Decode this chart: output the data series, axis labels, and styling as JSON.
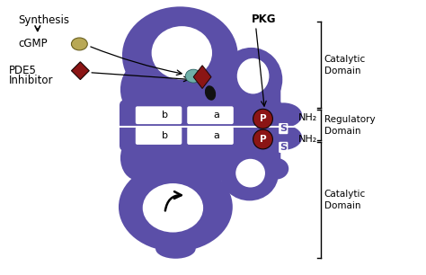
{
  "bg_color": "#ffffff",
  "purple": "#5b4fa8",
  "white": "#ffffff",
  "dark_red": "#8b1515",
  "gold": "#b8a855",
  "black": "#000000",
  "teal": "#70b0a8",
  "texts": {
    "synthesis": "Synthesis",
    "cgmp": "cGMP",
    "pde5_line1": "PDE5",
    "pde5_line2": "Inhibitor",
    "pkg": "PKG",
    "catalytic_top": "Catalytic\nDomain",
    "regulatory": "Regulatory\nDomain",
    "catalytic_bot": "Catalytic\nDomain",
    "nh2": "NH₂",
    "s": "S",
    "a": "a",
    "b": "b",
    "p": "P"
  }
}
